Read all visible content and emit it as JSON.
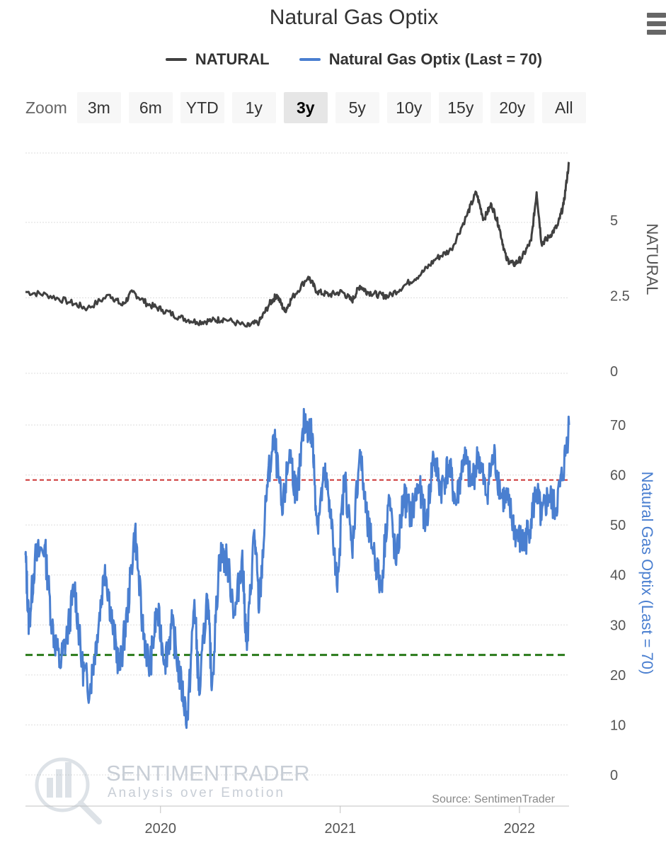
{
  "title": "Natural Gas Optix",
  "legend": [
    {
      "name": "NATURAL",
      "color": "#404040"
    },
    {
      "name": "Natural Gas Optix (Last = 70)",
      "color": "#4a7fd0"
    }
  ],
  "menu_icon": "hamburger-menu-icon",
  "zoom": {
    "label": "Zoom",
    "buttons": [
      "3m",
      "6m",
      "YTD",
      "1y",
      "3y",
      "5y",
      "10y",
      "15y",
      "20y",
      "All"
    ],
    "selected": "3y"
  },
  "watermark": {
    "brand": "SENTIMENTRADER",
    "tagline": "Analysis over Emotion",
    "icon": "magnifier-bar-chart-logo"
  },
  "source": "Source: SentimenTrader",
  "chart_data": {
    "type": "line",
    "x_range": [
      "2019-04-01",
      "2022-04-12"
    ],
    "x_ticks": [
      "2020",
      "2021",
      "2022"
    ],
    "top_axis": {
      "label": "NATURAL",
      "ticks": [
        "0",
        "2.5",
        "5"
      ],
      "range": [
        0,
        7.2
      ]
    },
    "bottom_axis": {
      "label": "Natural Gas Optix (Last = 70)",
      "ticks": [
        "0",
        "10",
        "20",
        "30",
        "40",
        "50",
        "60",
        "70"
      ],
      "range": [
        0,
        70
      ]
    },
    "grid": true,
    "reference_lines": [
      {
        "value": 59,
        "color": "#cc3333",
        "style": "dashed"
      },
      {
        "value": 24,
        "color": "#2a7a1a",
        "style": "dashed"
      }
    ],
    "series": [
      {
        "name": "NATURAL",
        "color": "#404040",
        "points": [
          [
            "2019-04-01",
            2.7
          ],
          [
            "2019-05-15",
            2.6
          ],
          [
            "2019-07-01",
            2.35
          ],
          [
            "2019-08-05",
            2.15
          ],
          [
            "2019-09-20",
            2.6
          ],
          [
            "2019-10-15",
            2.25
          ],
          [
            "2019-11-05",
            2.7
          ],
          [
            "2019-12-05",
            2.3
          ],
          [
            "2020-01-05",
            2.1
          ],
          [
            "2020-02-10",
            1.85
          ],
          [
            "2020-03-15",
            1.7
          ],
          [
            "2020-04-15",
            1.75
          ],
          [
            "2020-05-10",
            1.8
          ],
          [
            "2020-06-25",
            1.55
          ],
          [
            "2020-07-20",
            1.7
          ],
          [
            "2020-08-10",
            2.3
          ],
          [
            "2020-08-25",
            2.6
          ],
          [
            "2020-09-10",
            2.05
          ],
          [
            "2020-09-25",
            2.5
          ],
          [
            "2020-10-28",
            3.2
          ],
          [
            "2020-11-15",
            2.7
          ],
          [
            "2020-12-10",
            2.6
          ],
          [
            "2021-01-05",
            2.7
          ],
          [
            "2021-01-25",
            2.4
          ],
          [
            "2021-02-10",
            2.9
          ],
          [
            "2021-02-25",
            2.7
          ],
          [
            "2021-03-20",
            2.6
          ],
          [
            "2021-04-10",
            2.55
          ],
          [
            "2021-05-15",
            2.95
          ],
          [
            "2021-06-15",
            3.3
          ],
          [
            "2021-07-15",
            3.8
          ],
          [
            "2021-08-15",
            4.1
          ],
          [
            "2021-09-15",
            5.2
          ],
          [
            "2021-10-05",
            6.0
          ],
          [
            "2021-10-20",
            5.1
          ],
          [
            "2021-11-05",
            5.6
          ],
          [
            "2021-11-20",
            4.9
          ],
          [
            "2021-12-05",
            3.8
          ],
          [
            "2021-12-20",
            3.6
          ],
          [
            "2022-01-05",
            3.8
          ],
          [
            "2022-01-25",
            4.4
          ],
          [
            "2022-02-05",
            6.0
          ],
          [
            "2022-02-15",
            4.3
          ],
          [
            "2022-03-01",
            4.5
          ],
          [
            "2022-03-20",
            4.9
          ],
          [
            "2022-04-01",
            5.6
          ],
          [
            "2022-04-12",
            7.0
          ]
        ]
      },
      {
        "name": "Natural Gas Optix (Last = 70)",
        "color": "#4a7fd0",
        "points": [
          [
            "2019-04-01",
            44
          ],
          [
            "2019-04-08",
            30
          ],
          [
            "2019-04-20",
            43
          ],
          [
            "2019-05-10",
            46
          ],
          [
            "2019-05-25",
            30
          ],
          [
            "2019-06-10",
            22
          ],
          [
            "2019-06-25",
            28
          ],
          [
            "2019-07-10",
            38
          ],
          [
            "2019-07-25",
            22
          ],
          [
            "2019-08-10",
            17
          ],
          [
            "2019-08-25",
            28
          ],
          [
            "2019-09-10",
            42
          ],
          [
            "2019-09-25",
            30
          ],
          [
            "2019-10-10",
            21
          ],
          [
            "2019-10-25",
            32
          ],
          [
            "2019-11-10",
            49
          ],
          [
            "2019-11-25",
            30
          ],
          [
            "2019-12-10",
            21
          ],
          [
            "2019-12-25",
            33
          ],
          [
            "2020-01-10",
            23
          ],
          [
            "2020-01-25",
            30
          ],
          [
            "2020-02-10",
            19
          ],
          [
            "2020-02-25",
            11
          ],
          [
            "2020-03-10",
            35
          ],
          [
            "2020-03-20",
            16
          ],
          [
            "2020-04-05",
            36
          ],
          [
            "2020-04-15",
            18
          ],
          [
            "2020-04-30",
            44
          ],
          [
            "2020-05-15",
            43
          ],
          [
            "2020-06-01",
            32
          ],
          [
            "2020-06-15",
            44
          ],
          [
            "2020-06-25",
            25
          ],
          [
            "2020-07-10",
            49
          ],
          [
            "2020-07-20",
            33
          ],
          [
            "2020-08-05",
            58
          ],
          [
            "2020-08-20",
            67
          ],
          [
            "2020-09-05",
            52
          ],
          [
            "2020-09-20",
            65
          ],
          [
            "2020-10-05",
            55
          ],
          [
            "2020-10-20",
            71
          ],
          [
            "2020-11-05",
            68
          ],
          [
            "2020-11-15",
            50
          ],
          [
            "2020-11-30",
            60
          ],
          [
            "2020-12-10",
            55
          ],
          [
            "2020-12-25",
            38
          ],
          [
            "2021-01-10",
            60
          ],
          [
            "2021-01-25",
            45
          ],
          [
            "2021-02-10",
            65
          ],
          [
            "2021-02-25",
            50
          ],
          [
            "2021-03-10",
            45
          ],
          [
            "2021-03-25",
            37
          ],
          [
            "2021-04-10",
            56
          ],
          [
            "2021-04-25",
            42
          ],
          [
            "2021-05-10",
            56
          ],
          [
            "2021-05-25",
            52
          ],
          [
            "2021-06-10",
            58
          ],
          [
            "2021-06-25",
            50
          ],
          [
            "2021-07-10",
            64
          ],
          [
            "2021-07-25",
            57
          ],
          [
            "2021-08-10",
            62
          ],
          [
            "2021-08-25",
            54
          ],
          [
            "2021-09-10",
            64
          ],
          [
            "2021-09-25",
            58
          ],
          [
            "2021-10-10",
            64
          ],
          [
            "2021-10-25",
            56
          ],
          [
            "2021-11-10",
            64
          ],
          [
            "2021-11-25",
            56
          ],
          [
            "2021-12-10",
            54
          ],
          [
            "2021-12-25",
            48
          ],
          [
            "2022-01-10",
            46
          ],
          [
            "2022-01-20",
            49
          ],
          [
            "2022-02-05",
            57
          ],
          [
            "2022-02-15",
            51
          ],
          [
            "2022-03-01",
            56
          ],
          [
            "2022-03-15",
            53
          ],
          [
            "2022-03-30",
            60
          ],
          [
            "2022-04-12",
            70
          ]
        ]
      }
    ]
  }
}
